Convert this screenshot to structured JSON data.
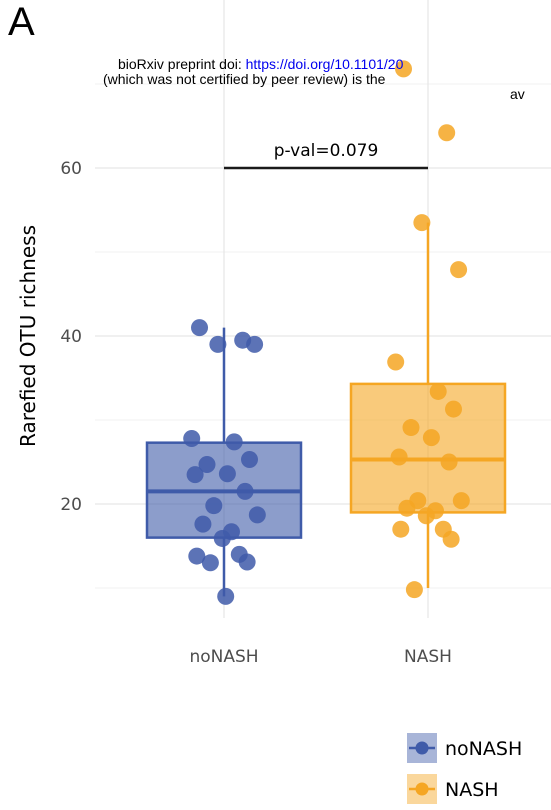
{
  "panel_letter": "A",
  "preprint": {
    "line1_prefix": "bioRxiv preprint doi: ",
    "line1_link": "https://doi.org/10.1101/20",
    "line2": "(which was not certified by peer review) is the",
    "line3": "av"
  },
  "colors": {
    "noNASH": "#3f5ba9",
    "NASH": "#f5a623"
  },
  "chart_data": {
    "type": "box",
    "ylabel": "Rarefied OTU richness",
    "xlabel": "",
    "categories": [
      "noNASH",
      "NASH"
    ],
    "yticks": [
      20,
      40,
      60
    ],
    "ylim": [
      7,
      74
    ],
    "grid": true,
    "legend_position": "bottom-right",
    "significance": {
      "label": "p-val=0.079",
      "y": 60,
      "between": [
        "noNASH",
        "NASH"
      ]
    },
    "series": [
      {
        "name": "noNASH",
        "box": {
          "min": 9,
          "q1": 16,
          "median": 21.5,
          "q3": 27.3,
          "max": 41
        },
        "points": [
          41,
          39.5,
          39,
          39,
          27.8,
          27.4,
          25.3,
          24.7,
          23.6,
          23.5,
          21.5,
          19.8,
          18.7,
          17.6,
          16.7,
          15.9,
          14,
          13.8,
          13.1,
          13,
          9
        ]
      },
      {
        "name": "NASH",
        "box": {
          "min": 10,
          "q1": 19,
          "median": 25.3,
          "q3": 34.3,
          "max": 53.5
        },
        "points": [
          71.8,
          64.2,
          53.5,
          47.9,
          36.9,
          33.4,
          31.3,
          29.1,
          27.9,
          25.6,
          25,
          20.4,
          20.4,
          19.5,
          19.2,
          18.6,
          17,
          17,
          15.8,
          9.8
        ]
      }
    ]
  }
}
